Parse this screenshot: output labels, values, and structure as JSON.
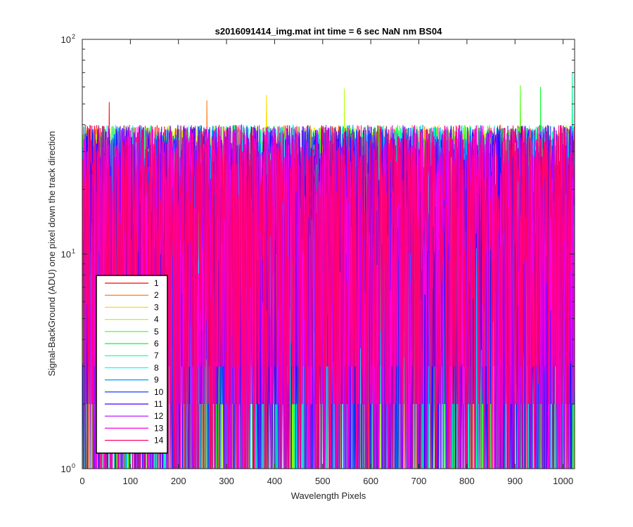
{
  "chart_data": {
    "type": "line",
    "title": "s2016091414_img.mat int time = 6 sec  NaN nm BS04",
    "xlabel": "Wavelength Pixels",
    "ylabel": "Signal-BackGround (ADU) one pixel down the track direction",
    "xlim": [
      0,
      1024
    ],
    "ylim": [
      1,
      100
    ],
    "yscale": "log",
    "x_ticks": [
      "0",
      "100",
      "200",
      "300",
      "400",
      "500",
      "600",
      "700",
      "800",
      "900",
      "1000"
    ],
    "x_tick_values": [
      0,
      100,
      200,
      300,
      400,
      500,
      600,
      700,
      800,
      900,
      1000
    ],
    "y_ticks": [
      {
        "value": 1,
        "mantissa": "10",
        "exp": "0"
      },
      {
        "value": 10,
        "mantissa": "10",
        "exp": "1"
      },
      {
        "value": 100,
        "mantissa": "10",
        "exp": "2"
      }
    ],
    "grid": false,
    "legend_position": "bottom-left",
    "pixel_count": 1024,
    "value_range_typical": [
      2,
      40
    ],
    "peak_values": [
      {
        "x": 55,
        "y": 51
      },
      {
        "x": 258,
        "y": 52
      },
      {
        "x": 382,
        "y": 55
      },
      {
        "x": 544,
        "y": 59
      },
      {
        "x": 910,
        "y": 61
      },
      {
        "x": 952,
        "y": 60
      },
      {
        "x": 1018,
        "y": 70
      }
    ],
    "series": [
      {
        "name": "1",
        "color": "#ff0000"
      },
      {
        "name": "2",
        "color": "#ff6e00"
      },
      {
        "name": "3",
        "color": "#ffdc00"
      },
      {
        "name": "4",
        "color": "#b4ff00"
      },
      {
        "name": "5",
        "color": "#46ff00"
      },
      {
        "name": "6",
        "color": "#00ff28"
      },
      {
        "name": "7",
        "color": "#00ff96"
      },
      {
        "name": "8",
        "color": "#00ffff"
      },
      {
        "name": "9",
        "color": "#0096ff"
      },
      {
        "name": "10",
        "color": "#0028ff"
      },
      {
        "name": "11",
        "color": "#4600ff"
      },
      {
        "name": "12",
        "color": "#b400ff"
      },
      {
        "name": "13",
        "color": "#ff00dc"
      },
      {
        "name": "14",
        "color": "#ff006e"
      }
    ]
  }
}
